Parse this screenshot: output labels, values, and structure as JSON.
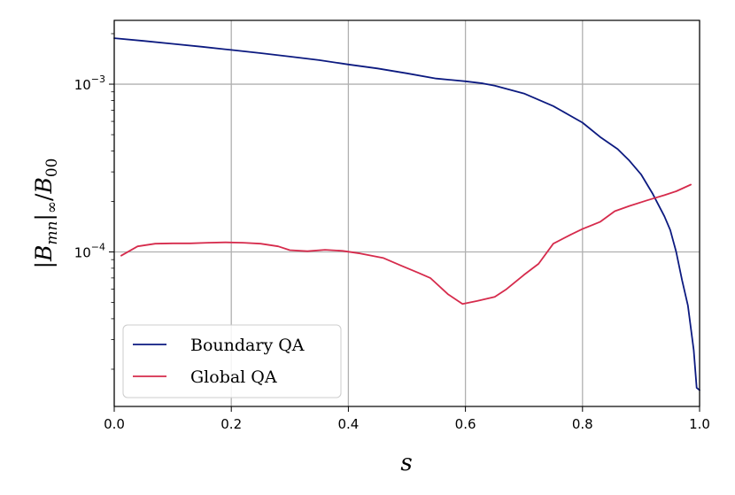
{
  "chart_data": {
    "type": "line",
    "title": "",
    "xlabel": "s",
    "ylabel": "|B_mn|_∞/B_00",
    "xlim": [
      0.0,
      1.0
    ],
    "ylim": [
      1.2e-05,
      0.0024
    ],
    "yscale": "log",
    "grid": true,
    "legend_position": "lower-left",
    "x_ticks": [
      {
        "value": 0.0,
        "label": "0.0"
      },
      {
        "value": 0.2,
        "label": "0.2"
      },
      {
        "value": 0.4,
        "label": "0.4"
      },
      {
        "value": 0.6,
        "label": "0.6"
      },
      {
        "value": 0.8,
        "label": "0.8"
      },
      {
        "value": 1.0,
        "label": "1.0"
      }
    ],
    "y_ticks": [
      {
        "value": 0.0001,
        "mantissa": "10",
        "exponent": "−4"
      },
      {
        "value": 0.001,
        "mantissa": "10",
        "exponent": "−3"
      }
    ],
    "series": [
      {
        "name": "Boundary QA",
        "color": "#0c1a80",
        "x": [
          0.0,
          0.05,
          0.1,
          0.15,
          0.2,
          0.25,
          0.3,
          0.35,
          0.4,
          0.45,
          0.5,
          0.55,
          0.6,
          0.63,
          0.65,
          0.7,
          0.75,
          0.8,
          0.83,
          0.86,
          0.88,
          0.9,
          0.92,
          0.94,
          0.95,
          0.96,
          0.97,
          0.98,
          0.99,
          0.995,
          1.0
        ],
        "y": [
          0.00188,
          0.00181,
          0.00174,
          0.00167,
          0.0016,
          0.00153,
          0.00146,
          0.00139,
          0.00131,
          0.00124,
          0.00116,
          0.00108,
          0.00104,
          0.00101,
          0.00098,
          0.00088,
          0.00074,
          0.00059,
          0.000485,
          0.00041,
          0.00035,
          0.00029,
          0.000222,
          0.000163,
          0.000135,
          0.0001,
          6.8e-05,
          4.8e-05,
          2.6e-05,
          1.55e-05,
          1.5e-05
        ]
      },
      {
        "name": "Global QA",
        "color": "#d62b4c",
        "x": [
          0.012,
          0.04,
          0.07,
          0.1,
          0.13,
          0.16,
          0.19,
          0.22,
          0.25,
          0.28,
          0.3,
          0.33,
          0.36,
          0.39,
          0.42,
          0.46,
          0.49,
          0.52,
          0.54,
          0.57,
          0.595,
          0.62,
          0.65,
          0.67,
          0.7,
          0.725,
          0.75,
          0.78,
          0.8,
          0.83,
          0.855,
          0.88,
          0.91,
          0.94,
          0.96,
          0.985
        ],
        "y": [
          9.5e-05,
          0.000108,
          0.000112,
          0.0001125,
          0.0001125,
          0.0001135,
          0.000114,
          0.0001135,
          0.000112,
          0.000108,
          0.0001025,
          0.000101,
          0.000103,
          0.0001015,
          9.8e-05,
          9.2e-05,
          8.3e-05,
          7.5e-05,
          7e-05,
          5.6e-05,
          4.9e-05,
          5.1e-05,
          5.4e-05,
          6e-05,
          7.3e-05,
          8.5e-05,
          0.000112,
          0.000127,
          0.000137,
          0.000151,
          0.000175,
          0.000188,
          0.000203,
          0.000218,
          0.00023,
          0.000252
        ]
      }
    ]
  }
}
